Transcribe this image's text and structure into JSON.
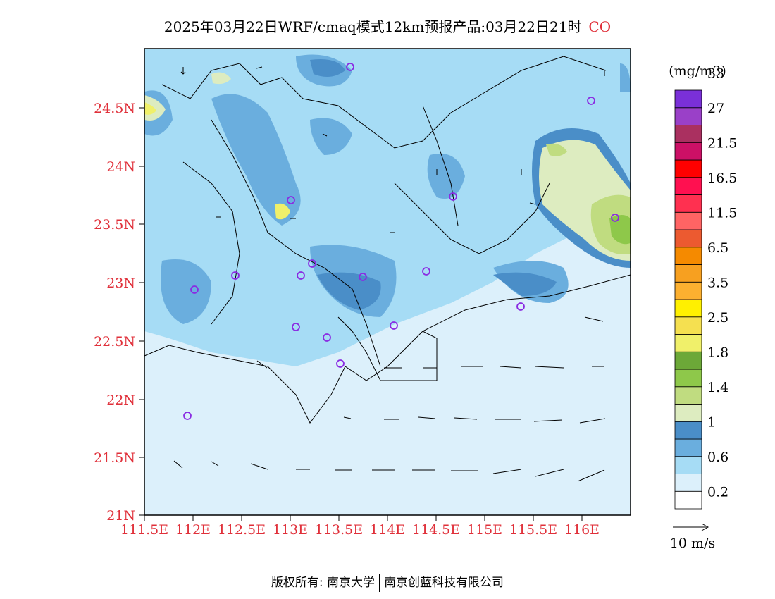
{
  "title": {
    "text": "2025年03月22日WRF/cmaq模式12km预报产品:03月22日21时",
    "species": "CO"
  },
  "colorbar": {
    "unit": "(mg/m3)",
    "colors": [
      "#ffffff",
      "#dcf0fb",
      "#a6dcf5",
      "#6aaede",
      "#4a8ec8",
      "#ddecc0",
      "#c0dc80",
      "#8ec84a",
      "#6ca838",
      "#f0f06a",
      "#f5e050",
      "#fff000",
      "#fcb030",
      "#f7a020",
      "#f58a00",
      "#ec5a30",
      "#ff6464",
      "#ff3050",
      "#ff1050",
      "#ff0000",
      "#cc1066",
      "#aa3060",
      "#9a40c8",
      "#7a30d8"
    ],
    "labels": [
      "0.2",
      "0.6",
      "1",
      "1.4",
      "1.8",
      "2.5",
      "3.5",
      "6.5",
      "11.5",
      "16.5",
      "21.5",
      "27",
      "33"
    ]
  },
  "axes": {
    "lat_ticks": [
      "24.5N",
      "24N",
      "23.5N",
      "23N",
      "22.5N",
      "22N",
      "21.5N",
      "21N"
    ],
    "lon_ticks": [
      "111.5E",
      "112E",
      "112.5E",
      "113E",
      "113.5E",
      "114E",
      "114.5E",
      "115E",
      "115.5E",
      "116E"
    ]
  },
  "wind_legend": {
    "label": "10 m/s"
  },
  "footer": {
    "left": "版权所有: 南京大学",
    "right": "南京创蓝科技有限公司"
  }
}
